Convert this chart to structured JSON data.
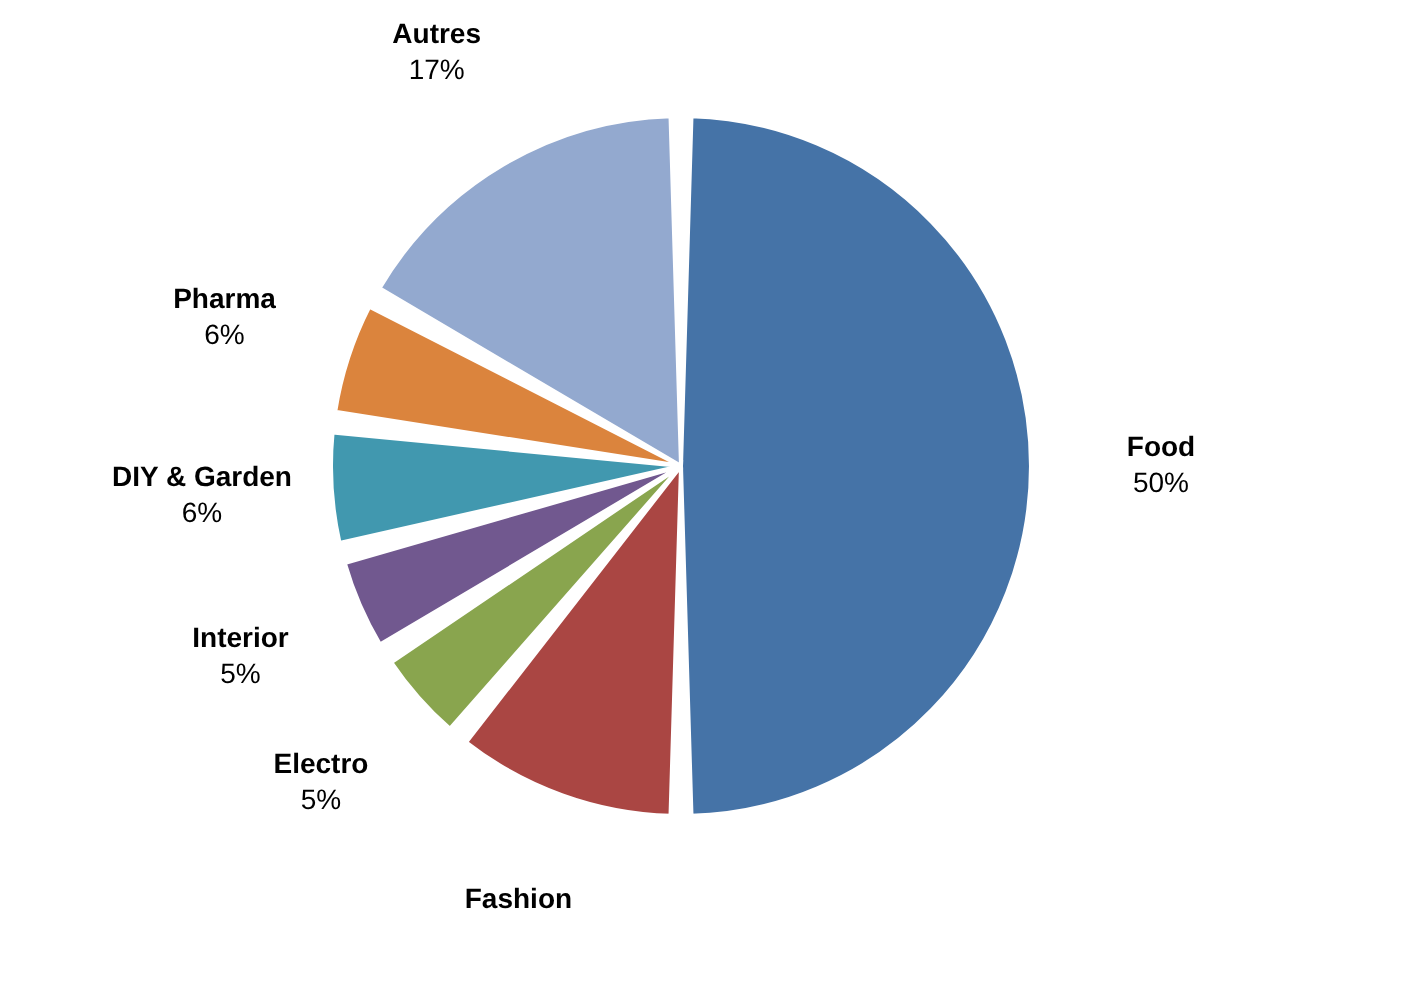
{
  "chart_data": {
    "type": "pie",
    "categories": [
      "Food",
      "Fashion",
      "Electro",
      "Interior",
      "DIY & Garden",
      "Pharma",
      "Autres"
    ],
    "values": [
      50,
      11,
      5,
      5,
      6,
      6,
      17
    ],
    "value_labels": [
      "50%",
      null,
      "5%",
      "5%",
      "6%",
      "6%",
      "17%"
    ],
    "colors": [
      "#4573a7",
      "#aa4643",
      "#89a54e",
      "#71588f",
      "#4198af",
      "#db843d",
      "#93a9cf"
    ],
    "legend": false
  }
}
